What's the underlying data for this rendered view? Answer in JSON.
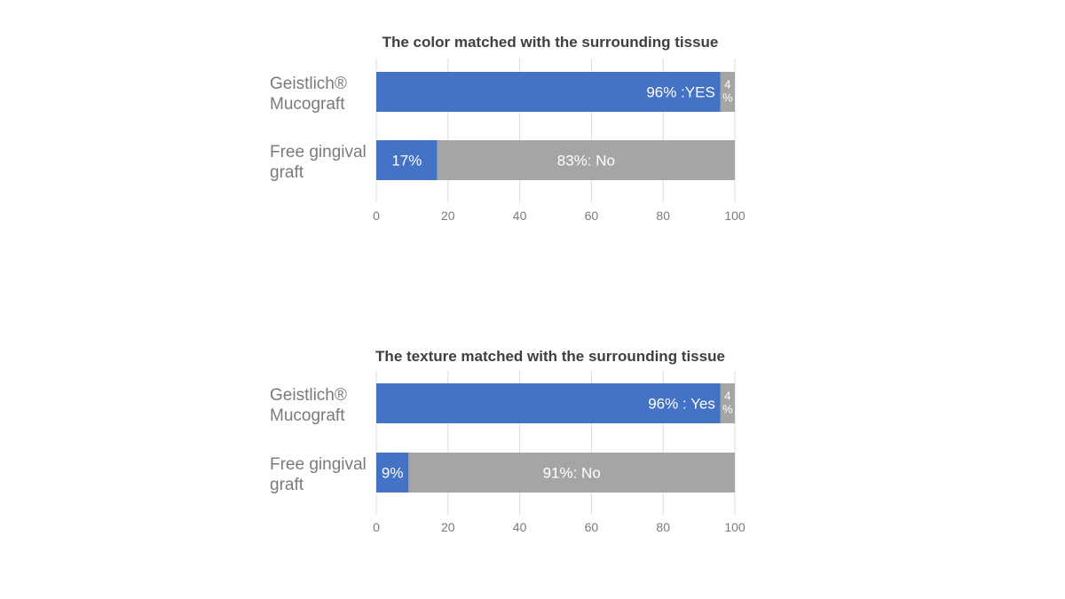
{
  "chart_data": [
    {
      "type": "bar",
      "orientation": "horizontal",
      "stacked": true,
      "title": "The color matched with the surrounding tissue",
      "categories": [
        [
          "Geistlich®",
          "Mucograft"
        ],
        [
          "Free gingival",
          "graft"
        ]
      ],
      "xlim": [
        0,
        100
      ],
      "xticks": [
        "0",
        "20",
        "40",
        "60",
        "80",
        "100"
      ],
      "grid": true,
      "series": [
        {
          "color": "#4472c4",
          "values": [
            96,
            17
          ],
          "labels": [
            "96% :YES",
            "17%"
          ]
        },
        {
          "color": "#a5a5a5",
          "values": [
            4,
            83
          ],
          "labels": [
            "4%",
            "83%: No"
          ]
        }
      ]
    },
    {
      "type": "bar",
      "orientation": "horizontal",
      "stacked": true,
      "title": "The texture matched with the surrounding tissue",
      "categories": [
        [
          "Geistlich®",
          "Mucograft"
        ],
        [
          "Free gingival",
          "graft"
        ]
      ],
      "xlim": [
        0,
        100
      ],
      "xticks": [
        "0",
        "20",
        "40",
        "60",
        "80",
        "100"
      ],
      "grid": true,
      "series": [
        {
          "color": "#4472c4",
          "values": [
            96,
            9
          ],
          "labels": [
            "96% : Yes",
            "9%"
          ]
        },
        {
          "color": "#a5a5a5",
          "values": [
            4,
            91
          ],
          "labels": [
            "4%",
            "91%: No"
          ]
        }
      ]
    }
  ]
}
